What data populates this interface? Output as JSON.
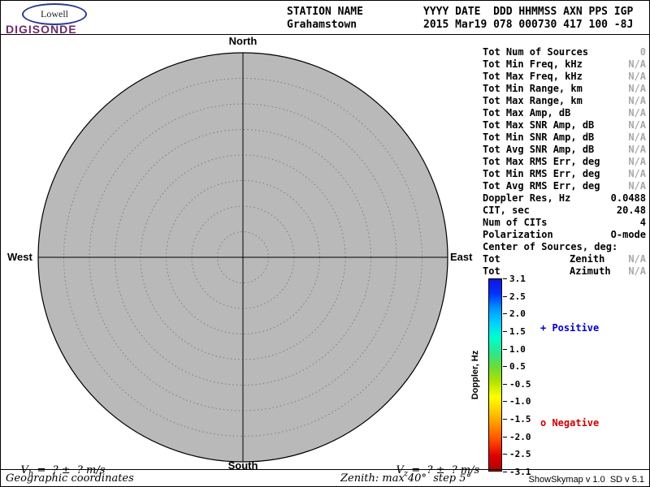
{
  "chart_data": {
    "type": "scatter",
    "projection": "polar-skymap",
    "points": [],
    "num_sources": 0,
    "zenith_max_deg": 40,
    "zenith_step_deg": 5,
    "compass_labels": [
      "North",
      "East",
      "South",
      "West"
    ],
    "colorbar": {
      "label": "Doppler, Hz",
      "min": -3.1,
      "max": 3.1,
      "tick_values": [
        3.1,
        2.5,
        2.0,
        1.5,
        1.0,
        0.5,
        -0.5,
        -1.0,
        -1.5,
        -2.0,
        -2.5,
        -3.1
      ],
      "positive": "blue",
      "negative": "red"
    }
  },
  "logo": {
    "oval_text": "Lowell",
    "brand": "DIGISONDE"
  },
  "header": {
    "station_label": "STATION NAME",
    "station_value": "Grahamstown",
    "fields_label": "YYYY DATE  DDD HHMMSS AXN PPS IGP",
    "fields_value": "2015 Mar19 078 000730 417 100 -8J"
  },
  "compass": {
    "north": "North",
    "south": "South",
    "west": "West",
    "east": "East"
  },
  "stats": {
    "rows": [
      {
        "label": "Tot Num of Sources",
        "value": "0",
        "dim": true
      },
      {
        "label": "Tot Min Freq, kHz",
        "value": "N/A",
        "dim": true
      },
      {
        "label": "Tot Max Freq, kHz",
        "value": "N/A",
        "dim": true
      },
      {
        "label": "Tot Min Range, km",
        "value": "N/A",
        "dim": true
      },
      {
        "label": "Tot Max Range, km",
        "value": "N/A",
        "dim": true
      },
      {
        "label": "Tot Max Amp, dB",
        "value": "N/A",
        "dim": true
      },
      {
        "label": "Tot Max SNR Amp, dB",
        "value": "N/A",
        "dim": true
      },
      {
        "label": "Tot Min SNR Amp, dB",
        "value": "N/A",
        "dim": true
      },
      {
        "label": "Tot Avg SNR Amp, dB",
        "value": "N/A",
        "dim": true
      },
      {
        "label": "Tot Max RMS Err, deg",
        "value": "N/A",
        "dim": true
      },
      {
        "label": "Tot Min RMS Err, deg",
        "value": "N/A",
        "dim": true
      },
      {
        "label": "Tot Avg RMS Err, deg",
        "value": "N/A",
        "dim": true
      },
      {
        "label": "Doppler Res, Hz",
        "value": "0.0488",
        "dim": false
      },
      {
        "label": "CIT, sec",
        "value": "20.48",
        "dim": false
      },
      {
        "label": "Num of CITs",
        "value": "4",
        "dim": false
      },
      {
        "label": "Polarization",
        "value": "O-mode",
        "dim": false
      },
      {
        "label": "Center of Sources, deg:",
        "value": "",
        "dim": false
      },
      {
        "label": "Tot",
        "mid": "Zenith",
        "value": "N/A",
        "dim": true
      },
      {
        "label": "Tot",
        "mid": "Azimuth",
        "value": "N/A",
        "dim": true
      }
    ]
  },
  "colorbar": {
    "axis_label": "Doppler, Hz",
    "max": 3.1,
    "min": -3.1,
    "ticks": [
      {
        "label": "3.1",
        "value": 3.1
      },
      {
        "label": "2.5",
        "value": 2.5
      },
      {
        "label": "2.0",
        "value": 2.0
      },
      {
        "label": "1.5",
        "value": 1.5
      },
      {
        "label": "1.0",
        "value": 1.0
      },
      {
        "label": "0.5",
        "value": 0.5
      },
      {
        "label": "-0.5",
        "value": -0.5
      },
      {
        "label": "-1.0",
        "value": -1.0
      },
      {
        "label": "-1.5",
        "value": -1.5
      },
      {
        "label": "-2.0",
        "value": -2.0
      },
      {
        "label": "-2.5",
        "value": -2.5
      },
      {
        "label": "-3.1",
        "value": -3.1
      }
    ],
    "gradient": [
      "#1414dc",
      "#0032ff",
      "#0096ff",
      "#00d2ff",
      "#00ffc8",
      "#2ee68c",
      "#6edc32",
      "#b4e400",
      "#ffff00",
      "#ffc800",
      "#ff8c00",
      "#ff4600",
      "#dc0000",
      "#b40000"
    ],
    "positive_label": "+ Positive",
    "negative_label": "o Negative",
    "positive_color": "#0000cc",
    "negative_color": "#cc0000"
  },
  "footer": {
    "vh_var": "V",
    "vh_sub": "h",
    "vh_expr": " =  ? ±  ? m/s",
    "vz_var": "V",
    "vz_sub": "z",
    "vz_expr": " =  ? ±  ? m/s",
    "coordinates": "Geographic coordinates",
    "zenith_info": "Zenith: max 40°  step 5°",
    "version": "ShowSkymap v 1.0  SD v 5.1"
  }
}
